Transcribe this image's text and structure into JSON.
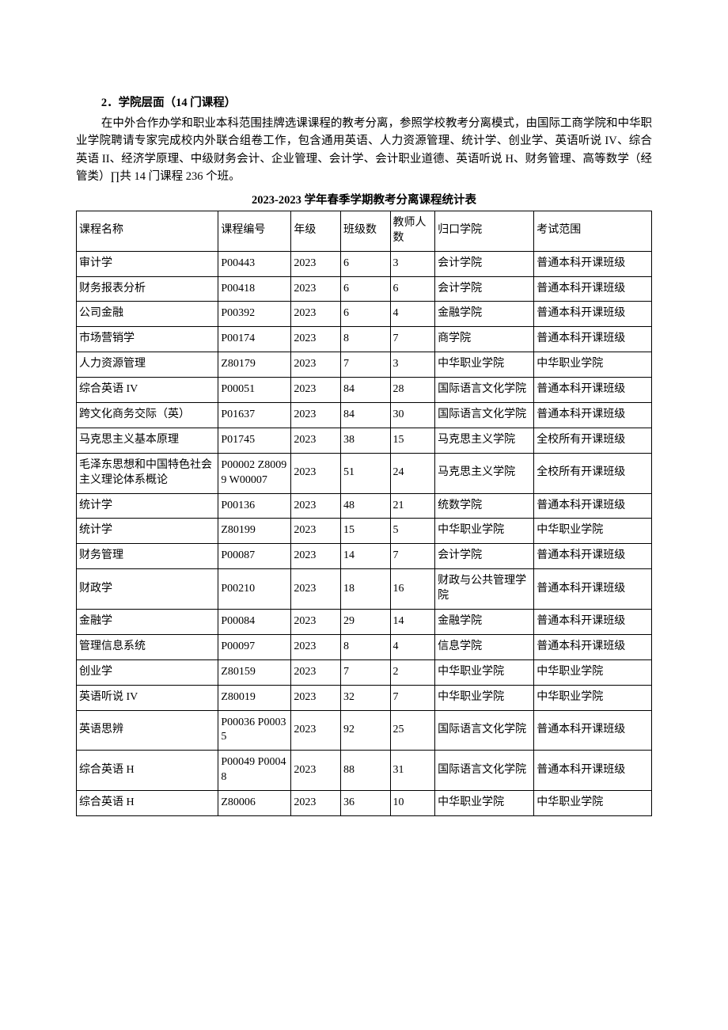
{
  "heading": "2．学院层面（14 门课程）",
  "paragraph": "在中外合作办学和职业本科范围挂牌选课课程的教考分离，参照学校教考分离模式，由国际工商学院和中华职业学院聘请专家完成校内外联合组卷工作，包含通用英语、人力资源管理、统计学、创业学、英语听说 IV、综合英语 II、经济学原理、中级财务会计、企业管理、会计学、会计职业道德、英语听说 H、财务管理、高等数学（经管类）∏共 14 门课程 236 个班。",
  "table_title": "2023-2023 学年春季学期教考分离课程统计表",
  "columns": [
    "课程名称",
    "课程编号",
    "年级",
    "班级数",
    "教师人数",
    "归口学院",
    "考试范围"
  ],
  "rows": [
    [
      "审计学",
      "P00443",
      "2023",
      "6",
      "3",
      "会计学院",
      "普通本科开课班级"
    ],
    [
      "财务报表分析",
      "P00418",
      "2023",
      "6",
      "6",
      "会计学院",
      "普通本科开课班级"
    ],
    [
      "公司金融",
      "P00392",
      "2023",
      "6",
      "4",
      "金融学院",
      "普通本科开课班级"
    ],
    [
      "市场营销学",
      "P00174",
      "2023",
      "8",
      "7",
      "商学院",
      "普通本科开课班级"
    ],
    [
      "人力资源管理",
      "Z80179",
      "2023",
      "7",
      "3",
      "中华职业学院",
      "中华职业学院"
    ],
    [
      "综合英语 IV",
      "P00051",
      "2023",
      "84",
      "28",
      "国际语言文化学院",
      "普通本科开课班级"
    ],
    [
      "跨文化商务交际（英）",
      "P01637",
      "2023",
      "84",
      "30",
      "国际语言文化学院",
      "普通本科开课班级"
    ],
    [
      "马克思主义基本原理",
      "P01745",
      "2023",
      "38",
      "15",
      "马克思主义学院",
      "全校所有开课班级"
    ],
    [
      "毛泽东思想和中国特色社会主义理论体系概论",
      "P00002 Z80099 W00007",
      "2023",
      "51",
      "24",
      "马克思主义学院",
      "全校所有开课班级"
    ],
    [
      "统计学",
      "P00136",
      "2023",
      "48",
      "21",
      "统数学院",
      "普通本科开课班级"
    ],
    [
      "统计学",
      "Z80199",
      "2023",
      "15",
      "5",
      "中华职业学院",
      "中华职业学院"
    ],
    [
      "财务管理",
      "P00087",
      "2023",
      "14",
      "7",
      "会计学院",
      "普通本科开课班级"
    ],
    [
      "财政学",
      "P00210",
      "2023",
      "18",
      "16",
      "财政与公共管理学院",
      "普通本科开课班级"
    ],
    [
      "金融学",
      "P00084",
      "2023",
      "29",
      "14",
      "金融学院",
      "普通本科开课班级"
    ],
    [
      "管理信息系统",
      "P00097",
      "2023",
      "8",
      "4",
      "信息学院",
      "普通本科开课班级"
    ],
    [
      "创业学",
      "Z80159",
      "2023",
      "7",
      "2",
      "中华职业学院",
      "中华职业学院"
    ],
    [
      "英语听说 IV",
      "Z80019",
      "2023",
      "32",
      "7",
      "中华职业学院",
      "中华职业学院"
    ],
    [
      "英语思辨",
      "P00036 P00035",
      "2023",
      "92",
      "25",
      "国际语言文化学院",
      "普通本科开课班级"
    ],
    [
      "综合英语 H",
      "P00049 P00048",
      "2023",
      "88",
      "31",
      "国际语言文化学院",
      "普通本科开课班级"
    ],
    [
      "综合英语 H",
      "Z80006",
      "2023",
      "36",
      "10",
      "中华职业学院",
      "中华职业学院"
    ]
  ]
}
